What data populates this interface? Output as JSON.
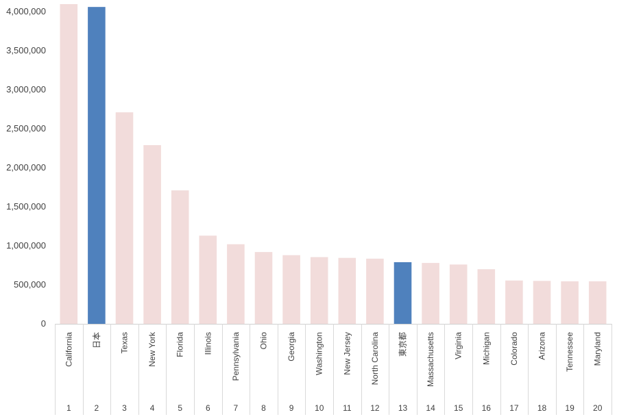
{
  "chart_data": {
    "type": "bar",
    "title": "",
    "xlabel": "",
    "ylabel": "",
    "ylim": [
      0,
      4000000
    ],
    "yticks": [
      0,
      500000,
      1000000,
      1500000,
      2000000,
      2500000,
      3000000,
      3500000,
      4000000
    ],
    "ytick_labels": [
      "0",
      "500,000",
      "1,000,000",
      "1,500,000",
      "2,000,000",
      "2,500,000",
      "3,000,000",
      "3,500,000",
      "4,000,000"
    ],
    "grid": false,
    "legend": "none",
    "colors": {
      "default": "#f2dcdb",
      "highlight": "#4f81bd"
    },
    "categories": [
      "California",
      "日本",
      "Texas",
      "New York",
      "Florida",
      "Illinois",
      "Pennsylvania",
      "Ohio",
      "Georgia",
      "Washington",
      "New Jersey",
      "North Carolina",
      "東京都",
      "Massachusetts",
      "Virginia",
      "Michigan",
      "Colorado",
      "Arizona",
      "Tennessee",
      "Maryland"
    ],
    "ranks": [
      "1",
      "2",
      "3",
      "4",
      "5",
      "6",
      "7",
      "8",
      "9",
      "10",
      "11",
      "12",
      "13",
      "14",
      "15",
      "16",
      "17",
      "18",
      "19",
      "20"
    ],
    "values": [
      4100000,
      4060000,
      2710000,
      2290000,
      1710000,
      1130000,
      1020000,
      920000,
      880000,
      855000,
      845000,
      835000,
      790000,
      780000,
      760000,
      700000,
      555000,
      550000,
      545000,
      545000
    ],
    "highlighted": [
      false,
      true,
      false,
      false,
      false,
      false,
      false,
      false,
      false,
      false,
      false,
      false,
      true,
      false,
      false,
      false,
      false,
      false,
      false,
      false
    ]
  }
}
